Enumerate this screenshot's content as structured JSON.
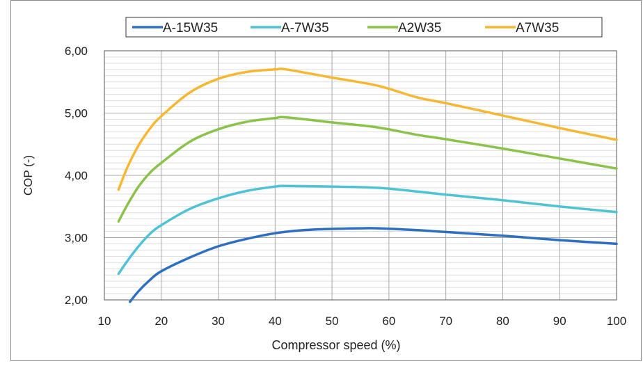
{
  "chart_data": {
    "type": "line",
    "title": "",
    "xlabel": "Compressor speed (%)",
    "ylabel": "COP (-)",
    "xlim": [
      10,
      100
    ],
    "ylim": [
      2.0,
      6.0
    ],
    "x_ticks": [
      10,
      20,
      30,
      40,
      50,
      60,
      70,
      80,
      90,
      100
    ],
    "x_tick_labels": [
      "10",
      "20",
      "30",
      "40",
      "50",
      "60",
      "70",
      "80",
      "90",
      "100"
    ],
    "y_ticks": [
      2,
      3,
      4,
      5,
      6
    ],
    "y_tick_labels": [
      "2,00",
      "3,00",
      "4,00",
      "5,00",
      "6,00"
    ],
    "grid": true,
    "minor_y_grid": true,
    "legend_position": "top",
    "series": [
      {
        "name": "A-15W35",
        "color": "#2f6fc2",
        "points": [
          [
            14.5,
            1.97
          ],
          [
            16,
            2.14
          ],
          [
            18,
            2.32
          ],
          [
            20,
            2.46
          ],
          [
            25,
            2.68
          ],
          [
            30,
            2.86
          ],
          [
            35,
            2.98
          ],
          [
            40,
            3.07
          ],
          [
            45,
            3.12
          ],
          [
            50,
            3.14
          ],
          [
            55,
            3.15
          ],
          [
            58,
            3.15
          ],
          [
            65,
            3.12
          ],
          [
            70,
            3.09
          ],
          [
            80,
            3.03
          ],
          [
            90,
            2.96
          ],
          [
            100,
            2.9
          ]
        ]
      },
      {
        "name": "A-7W35",
        "color": "#4fc3d6",
        "points": [
          [
            12.5,
            2.42
          ],
          [
            14,
            2.62
          ],
          [
            16,
            2.86
          ],
          [
            18,
            3.06
          ],
          [
            20,
            3.2
          ],
          [
            25,
            3.46
          ],
          [
            30,
            3.63
          ],
          [
            35,
            3.75
          ],
          [
            40,
            3.82
          ],
          [
            42,
            3.83
          ],
          [
            50,
            3.82
          ],
          [
            58,
            3.8
          ],
          [
            65,
            3.74
          ],
          [
            70,
            3.69
          ],
          [
            80,
            3.6
          ],
          [
            90,
            3.5
          ],
          [
            100,
            3.41
          ]
        ]
      },
      {
        "name": "A2W35",
        "color": "#8ac24a",
        "points": [
          [
            12.5,
            3.26
          ],
          [
            14,
            3.52
          ],
          [
            16,
            3.82
          ],
          [
            18,
            4.04
          ],
          [
            20,
            4.2
          ],
          [
            25,
            4.54
          ],
          [
            30,
            4.74
          ],
          [
            35,
            4.86
          ],
          [
            40,
            4.92
          ],
          [
            42,
            4.93
          ],
          [
            50,
            4.85
          ],
          [
            58,
            4.77
          ],
          [
            65,
            4.65
          ],
          [
            70,
            4.58
          ],
          [
            80,
            4.43
          ],
          [
            90,
            4.27
          ],
          [
            100,
            4.11
          ]
        ]
      },
      {
        "name": "A7W35",
        "color": "#f8b732",
        "points": [
          [
            12.5,
            3.77
          ],
          [
            14,
            4.12
          ],
          [
            16,
            4.48
          ],
          [
            18,
            4.75
          ],
          [
            20,
            4.95
          ],
          [
            25,
            5.33
          ],
          [
            30,
            5.55
          ],
          [
            35,
            5.66
          ],
          [
            40,
            5.7
          ],
          [
            42,
            5.7
          ],
          [
            50,
            5.57
          ],
          [
            58,
            5.44
          ],
          [
            65,
            5.25
          ],
          [
            70,
            5.16
          ],
          [
            80,
            4.96
          ],
          [
            90,
            4.76
          ],
          [
            100,
            4.57
          ]
        ]
      }
    ]
  }
}
